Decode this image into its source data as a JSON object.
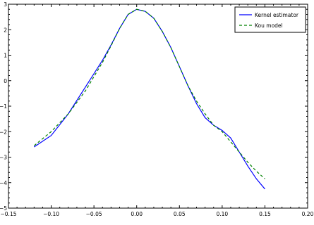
{
  "chart_data": {
    "type": "line",
    "xlim": [
      -0.15,
      0.2
    ],
    "ylim": [
      -5,
      3
    ],
    "grid": false,
    "legend_position": "top-right",
    "x_ticks": [
      -0.15,
      -0.1,
      -0.05,
      0.0,
      0.05,
      0.1,
      0.15,
      0.2
    ],
    "x_tick_labels": [
      "−0.15",
      "−0.10",
      "−0.05",
      "0.00",
      "0.05",
      "0.10",
      "0.15",
      "0.20"
    ],
    "y_ticks": [
      3,
      2,
      1,
      0,
      -1,
      -2,
      -3,
      -4,
      -5
    ],
    "y_tick_labels": [
      "3",
      "2",
      "1",
      "0",
      "−1",
      "−2",
      "−3",
      "−4",
      "−5"
    ],
    "series": [
      {
        "name": "Kernel estimator",
        "color": "#0000ff",
        "style": "solid",
        "x": [
          -0.12,
          -0.1,
          -0.08,
          -0.06,
          -0.04,
          -0.03,
          -0.02,
          -0.01,
          0.0,
          0.01,
          0.02,
          0.03,
          0.04,
          0.05,
          0.06,
          0.07,
          0.08,
          0.09,
          0.1,
          0.11,
          0.12,
          0.13,
          0.14,
          0.15
        ],
        "y": [
          -2.6,
          -2.15,
          -1.3,
          -0.25,
          0.8,
          1.4,
          2.05,
          2.6,
          2.8,
          2.72,
          2.45,
          1.93,
          1.3,
          0.55,
          -0.2,
          -0.9,
          -1.45,
          -1.75,
          -1.95,
          -2.25,
          -2.8,
          -3.35,
          -3.85,
          -4.25
        ]
      },
      {
        "name": "Kou model",
        "color": "#008000",
        "style": "dashed",
        "x": [
          -0.12,
          -0.1,
          -0.08,
          -0.06,
          -0.04,
          -0.03,
          -0.02,
          -0.01,
          0.0,
          0.01,
          0.02,
          0.03,
          0.04,
          0.05,
          0.06,
          0.07,
          0.08,
          0.09,
          0.1,
          0.11,
          0.12,
          0.13,
          0.14,
          0.15
        ],
        "y": [
          -2.55,
          -2.0,
          -1.3,
          -0.4,
          0.72,
          1.37,
          2.05,
          2.6,
          2.8,
          2.72,
          2.45,
          1.93,
          1.3,
          0.55,
          -0.2,
          -0.8,
          -1.3,
          -1.75,
          -2.0,
          -2.4,
          -2.8,
          -3.2,
          -3.55,
          -3.85
        ]
      }
    ]
  }
}
